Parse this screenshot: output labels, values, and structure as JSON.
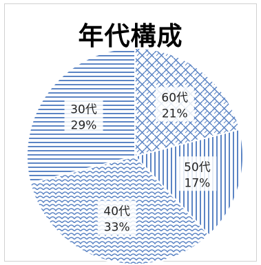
{
  "chart_data": {
    "type": "pie",
    "title": "年代構成",
    "slices": [
      {
        "label": "60代",
        "value": 21,
        "value_label": "21%",
        "pattern": "weave"
      },
      {
        "label": "50代",
        "value": 17,
        "value_label": "17%",
        "pattern": "vertical-lines"
      },
      {
        "label": "40代",
        "value": 33,
        "value_label": "33%",
        "pattern": "scales"
      },
      {
        "label": "30代",
        "value": 29,
        "value_label": "29%",
        "pattern": "horizontal-lines"
      }
    ],
    "start_angle": "12 o'clock",
    "direction": "clockwise",
    "legend": "none",
    "colors": {
      "pattern_stroke": "#5b84c4",
      "background": "#ffffff"
    }
  }
}
